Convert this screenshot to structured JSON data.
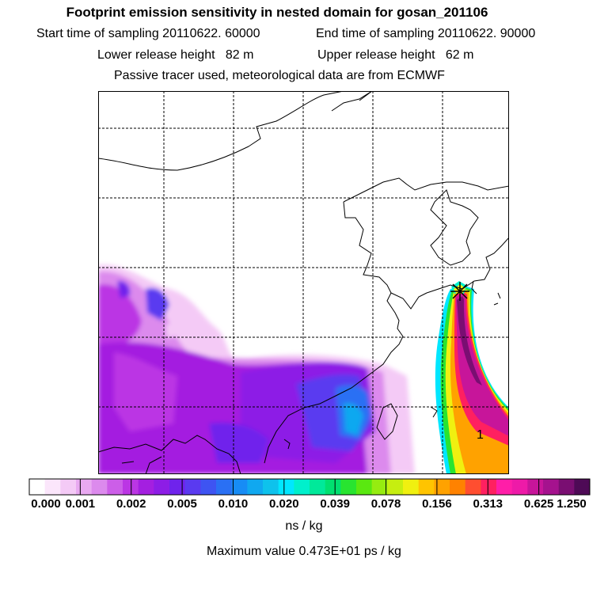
{
  "header": {
    "title": "Footprint emission sensitivity in nested domain for gosan_201106",
    "start_label": "Start time of sampling 20110622. 60000",
    "end_label": "End time of sampling 20110622. 90000",
    "lower_label": "Lower release height   82 m",
    "upper_label": "Upper release height   62 m",
    "tracer_label": "Passive tracer used, meteorological data are from ECMWF"
  },
  "map": {
    "release_marker_label": "1"
  },
  "colorbar": {
    "segment_colors": [
      "#ffffff",
      "#fbe6fb",
      "#f4caf6",
      "#e9a9f1",
      "#dc8aed",
      "#cc5ee8",
      "#bb36e4",
      "#a41fe0",
      "#8d1de6",
      "#6f23ec",
      "#5a3af0",
      "#3e54f2",
      "#2a70f4",
      "#178cf5",
      "#10a8f0",
      "#0ec2ec",
      "#00e7ff",
      "#00f0cc",
      "#00e99a",
      "#00e070",
      "#28e430",
      "#5ae810",
      "#96ec10",
      "#c6ee10",
      "#f0f010",
      "#ffc400",
      "#ffa200",
      "#ff8200",
      "#ff4e30",
      "#ff2060",
      "#ff1ea8",
      "#ee1aa8",
      "#c7159a",
      "#a5128e",
      "#7a0e72",
      "#4e0a56"
    ],
    "tick_labels": [
      "0.000",
      "0.001",
      "0.002",
      "0.005",
      "0.010",
      "0.020",
      "0.039",
      "0.078",
      "0.156",
      "0.313",
      "0.625",
      "1.250"
    ],
    "units": "ns / kg"
  },
  "footer": {
    "maximum_value": "Maximum value  0.473E+01 ps / kg"
  }
}
